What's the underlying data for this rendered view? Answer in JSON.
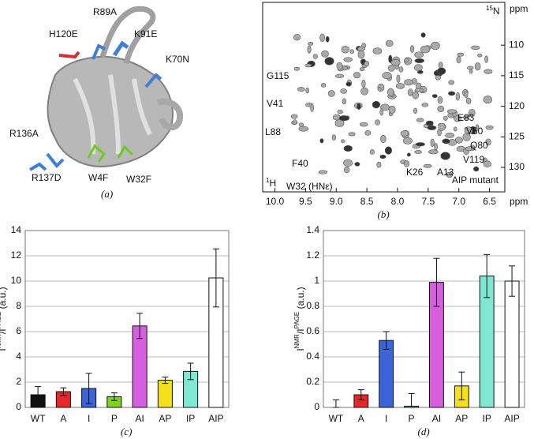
{
  "panel_a": {
    "labels": [
      "H120E",
      "R89A",
      "K91E",
      "K70N",
      "R136A",
      "R137D",
      "W4F",
      "W32F"
    ],
    "caption": "(a)"
  },
  "chart_data": [
    {
      "type": "spectrum",
      "caption": "(b)",
      "inset_label": "AIP mutant",
      "x_label": "ppm",
      "y_label": "ppm",
      "x_nucleus": {
        "mass": "1",
        "symbol": "H"
      },
      "y_nucleus": {
        "mass": "15",
        "symbol": "N"
      },
      "xlim": [
        10.2,
        6.25
      ],
      "ylim": [
        103,
        134
      ],
      "xticks": [
        {
          "value": 10,
          "label": "10.0"
        },
        9.5,
        {
          "value": 9,
          "label": "9.0"
        },
        8.5,
        {
          "value": 8,
          "label": "8.0"
        },
        7.5,
        {
          "value": 7,
          "label": "7.0"
        },
        6.5
      ],
      "yticks": [
        110,
        115,
        120,
        125,
        130
      ],
      "annotations": [
        "G115",
        "V41",
        "L88",
        "F40",
        "W32 (HNε)",
        "E83",
        "V50",
        "Q80",
        "V119",
        "K26",
        "A13"
      ]
    },
    {
      "type": "bar",
      "caption": "(c)",
      "y_label": [
        "I",
        "NMR",
        "/I",
        "PAGE",
        " (a.u.)"
      ],
      "categories": [
        "WT",
        "A",
        "I",
        "P",
        "AI",
        "AP",
        "IP",
        "AIP"
      ],
      "values": [
        1.0,
        1.25,
        1.5,
        0.85,
        6.45,
        2.15,
        2.85,
        10.25
      ],
      "errors": [
        0.65,
        0.3,
        1.2,
        0.3,
        1.0,
        0.25,
        0.65,
        2.3
      ],
      "colors": [
        "#111111",
        "#e8262a",
        "#3d63d8",
        "#7ed321",
        "#d65fe0",
        "#f5e11a",
        "#7fe8d3",
        "#ffffff"
      ],
      "ylim": [
        0,
        14
      ],
      "yticks": [
        0,
        2,
        4,
        6,
        8,
        10,
        12,
        14
      ],
      "grid": true
    },
    {
      "type": "bar",
      "caption": "(d)",
      "y_label": [
        "I",
        "NMR",
        "/I",
        "PAGE",
        " (a.u.)"
      ],
      "categories": [
        "WT",
        "A",
        "I",
        "P",
        "AI",
        "AP",
        "IP",
        "AIP"
      ],
      "values": [
        0.0,
        0.1,
        0.53,
        0.01,
        0.99,
        0.17,
        1.04,
        1.0
      ],
      "errors": [
        0.06,
        0.04,
        0.07,
        0.1,
        0.19,
        0.11,
        0.17,
        0.12
      ],
      "colors": [
        "#111111",
        "#e8262a",
        "#3d63d8",
        "#7ed321",
        "#d65fe0",
        "#f5e11a",
        "#7fe8d3",
        "#ffffff"
      ],
      "ylim": [
        0,
        1.4
      ],
      "yticks": [
        0,
        0.2,
        0.4,
        0.6,
        0.8,
        1,
        1.2,
        1.4
      ],
      "grid": true
    }
  ]
}
